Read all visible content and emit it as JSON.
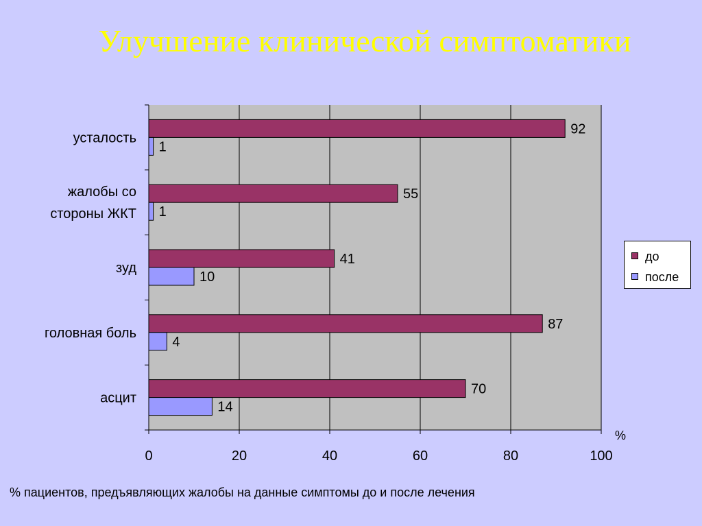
{
  "slide": {
    "title": "Улучшение клинической симптоматики",
    "caption": "% пациентов, предъявляющих жалобы на данные симптомы до и после лечения"
  },
  "chart_data": {
    "type": "bar",
    "orientation": "horizontal",
    "categories": [
      [
        "усталость"
      ],
      [
        "жалобы со",
        "стороны ЖКТ"
      ],
      [
        "зуд"
      ],
      [
        "головная боль"
      ],
      [
        "асцит"
      ]
    ],
    "series": [
      {
        "name": "до",
        "values": [
          92,
          55,
          41,
          87,
          70
        ],
        "color": "#993366"
      },
      {
        "name": "после",
        "values": [
          1,
          1,
          10,
          4,
          14
        ],
        "color": "#9999ff"
      }
    ],
    "x_ticks": [
      0,
      20,
      40,
      60,
      80,
      100
    ],
    "x_unit_label": "%",
    "xlim": [
      0,
      100
    ],
    "grid": true,
    "plot_background": "#c0c0c0",
    "data_labels": true,
    "legend_position": "right"
  }
}
